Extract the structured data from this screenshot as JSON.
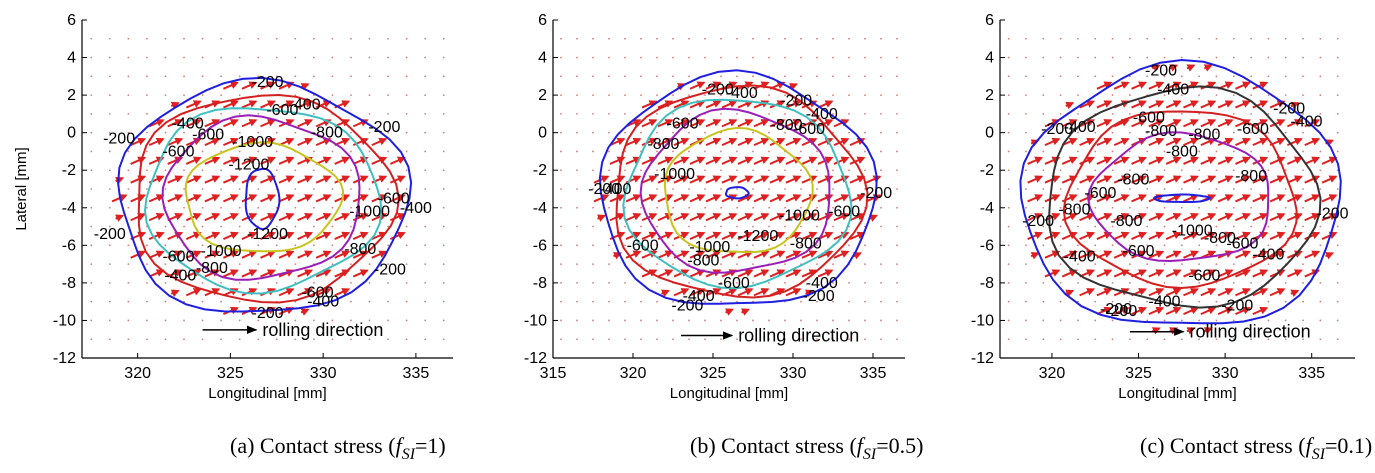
{
  "chart_data": [
    {
      "type": "contour",
      "xlabel": "Longitudinal [mm]",
      "ylabel": "Lateral [mm]",
      "xlim": [
        317,
        337
      ],
      "ylim": [
        -12,
        6
      ],
      "xticks": [
        320,
        325,
        330,
        335
      ],
      "yticks": [
        6,
        4,
        2,
        0,
        -2,
        -4,
        -6,
        -8,
        -10,
        -12
      ],
      "center": [
        326.7,
        -3.5
      ],
      "annotation": "rolling direction",
      "arrow": {
        "x0": 323.5,
        "x1": 326.4,
        "y": -10.5
      },
      "caption": {
        "prefix": "(a) Contact stress (",
        "var": "f",
        "sub": "SI",
        "suffix": "=1)"
      },
      "levels": [
        {
          "value": -200,
          "color": "#1f1fe0",
          "rx": 7.8,
          "ry": 6.2
        },
        {
          "value": -400,
          "color": "#d42020",
          "rx": 7.0,
          "ry": 5.5
        },
        {
          "value": -600,
          "color": "#3fbfbf",
          "rx": 6.3,
          "ry": 4.9
        },
        {
          "value": -800,
          "color": "#9a1fb8",
          "rx": 5.3,
          "ry": 4.3
        },
        {
          "value": -1000,
          "color": "#c8c41f",
          "rx": 4.2,
          "ry": 2.9
        },
        {
          "value": -1200,
          "color": "#1f1fe0",
          "rx": 0.9,
          "ry": 1.6
        }
      ],
      "labels": [
        {
          "text": "-200",
          "x": 327.0,
          "y": 2.7
        },
        {
          "text": "-400",
          "x": 329.0,
          "y": 1.5
        },
        {
          "text": "-600",
          "x": 327.8,
          "y": 1.2
        },
        {
          "text": "-800",
          "x": 330.2,
          "y": 0.0
        },
        {
          "text": "-1000",
          "x": 326.2,
          "y": -0.5
        },
        {
          "text": "-1200",
          "x": 326.0,
          "y": -1.7
        },
        {
          "text": "-200",
          "x": 319.0,
          "y": -0.3
        },
        {
          "text": "-400",
          "x": 322.7,
          "y": 0.5
        },
        {
          "text": "-600",
          "x": 322.2,
          "y": -1.0
        },
        {
          "text": "-600",
          "x": 323.8,
          "y": -0.1
        },
        {
          "text": "-200",
          "x": 333.3,
          "y": 0.3
        },
        {
          "text": "-1000",
          "x": 332.5,
          "y": -4.2
        },
        {
          "text": "-600",
          "x": 333.8,
          "y": -3.5
        },
        {
          "text": "-400",
          "x": 335.0,
          "y": -4.0
        },
        {
          "text": "-1200",
          "x": 327.0,
          "y": -5.4
        },
        {
          "text": "-1000",
          "x": 324.5,
          "y": -6.3
        },
        {
          "text": "-800",
          "x": 332.0,
          "y": -6.2
        },
        {
          "text": "-600",
          "x": 322.2,
          "y": -6.6
        },
        {
          "text": "-800",
          "x": 324.0,
          "y": -7.2
        },
        {
          "text": "-400",
          "x": 322.3,
          "y": -7.6
        },
        {
          "text": "-200",
          "x": 318.5,
          "y": -5.4
        },
        {
          "text": "-200",
          "x": 333.6,
          "y": -7.3
        },
        {
          "text": "-600",
          "x": 329.7,
          "y": -8.5
        },
        {
          "text": "-400",
          "x": 330.0,
          "y": -9.0
        },
        {
          "text": "-200",
          "x": 327.0,
          "y": -9.6
        }
      ]
    },
    {
      "type": "contour",
      "xlabel": "Longitudinal [mm]",
      "ylabel": "",
      "xlim": [
        315,
        337
      ],
      "ylim": [
        -12,
        6
      ],
      "xticks": [
        315,
        320,
        325,
        330,
        335
      ],
      "yticks": [
        6,
        4,
        2,
        0,
        -2,
        -4,
        -6,
        -8,
        -10,
        -12
      ],
      "center": [
        326.5,
        -3.2
      ],
      "annotation": "rolling direction",
      "arrow": {
        "x0": 323.0,
        "x1": 326.2,
        "y": -10.8
      },
      "caption": {
        "prefix": "(b) Contact stress (",
        "var": "f",
        "sub": "SI",
        "suffix": "=0.5)"
      },
      "levels": [
        {
          "value": -200,
          "color": "#1f1fe0",
          "rx": 8.6,
          "ry": 6.2
        },
        {
          "value": -400,
          "color": "#d42020",
          "rx": 7.8,
          "ry": 5.6
        },
        {
          "value": -600,
          "color": "#3fbfbf",
          "rx": 7.0,
          "ry": 5.0
        },
        {
          "value": -800,
          "color": "#9a1fb8",
          "rx": 5.9,
          "ry": 4.3
        },
        {
          "value": -1000,
          "color": "#c8c41f",
          "rx": 4.6,
          "ry": 3.3
        },
        {
          "value": -1200,
          "color": "#1f1fe0",
          "rx": 0.7,
          "ry": 0.3
        }
      ],
      "labels": [
        {
          "text": "-200",
          "x": 325.3,
          "y": 2.3
        },
        {
          "text": "-400",
          "x": 326.8,
          "y": 2.1
        },
        {
          "text": "-200",
          "x": 330.2,
          "y": 1.7
        },
        {
          "text": "-400",
          "x": 331.8,
          "y": 1.0
        },
        {
          "text": "-600",
          "x": 331.0,
          "y": 0.2
        },
        {
          "text": "-800",
          "x": 329.6,
          "y": 0.4
        },
        {
          "text": "-600",
          "x": 323.1,
          "y": 0.5
        },
        {
          "text": "-800",
          "x": 321.9,
          "y": -0.6
        },
        {
          "text": "-1000",
          "x": 322.6,
          "y": -2.2
        },
        {
          "text": "-200",
          "x": 318.2,
          "y": -3.0
        },
        {
          "text": "-400",
          "x": 318.9,
          "y": -3.0
        },
        {
          "text": "-1000",
          "x": 330.4,
          "y": -4.4
        },
        {
          "text": "-600",
          "x": 333.2,
          "y": -4.2
        },
        {
          "text": "-200",
          "x": 335.2,
          "y": -3.2
        },
        {
          "text": "-1200",
          "x": 327.8,
          "y": -5.5
        },
        {
          "text": "-1000",
          "x": 324.8,
          "y": -6.1
        },
        {
          "text": "-800",
          "x": 324.4,
          "y": -6.8
        },
        {
          "text": "-600",
          "x": 320.6,
          "y": -6.0
        },
        {
          "text": "-800",
          "x": 330.8,
          "y": -5.9
        },
        {
          "text": "-600",
          "x": 326.3,
          "y": -8.0
        },
        {
          "text": "-400",
          "x": 331.8,
          "y": -8.0
        },
        {
          "text": "-200",
          "x": 331.6,
          "y": -8.7
        },
        {
          "text": "-400",
          "x": 324.1,
          "y": -8.7
        },
        {
          "text": "-200",
          "x": 323.4,
          "y": -9.2
        }
      ]
    },
    {
      "type": "contour",
      "xlabel": "Longitudinal [mm]",
      "ylabel": "",
      "xlim": [
        317,
        337.5
      ],
      "ylim": [
        -12,
        6
      ],
      "xticks": [
        320,
        325,
        330,
        335
      ],
      "yticks": [
        6,
        4,
        2,
        0,
        -2,
        -4,
        -6,
        -8,
        -10,
        -12
      ],
      "center": [
        327.5,
        -3.5
      ],
      "annotation": "rolling direction",
      "arrow": {
        "x0": 324.5,
        "x1": 327.6,
        "y": -10.6
      },
      "caption": {
        "prefix": "(c) Contact stress (",
        "var": "f",
        "sub": "SI",
        "suffix": "=0.1)"
      },
      "levels": [
        {
          "value": -200,
          "color": "#1f1fe0",
          "rx": 9.2,
          "ry": 7.0
        },
        {
          "value": -400,
          "color": "#333333",
          "rx": 7.8,
          "ry": 5.8
        },
        {
          "value": -600,
          "color": "#d42020",
          "rx": 6.6,
          "ry": 4.7
        },
        {
          "value": -800,
          "color": "#9a1fb8",
          "rx": 5.2,
          "ry": 3.4
        },
        {
          "value": -1000,
          "color": "#1f1fe0",
          "rx": 1.6,
          "ry": 0.2
        }
      ],
      "labels": [
        {
          "text": "-200",
          "x": 326.3,
          "y": 3.3
        },
        {
          "text": "-400",
          "x": 327.0,
          "y": 2.3
        },
        {
          "text": "-200",
          "x": 333.7,
          "y": 1.3
        },
        {
          "text": "-400",
          "x": 334.7,
          "y": 0.6
        },
        {
          "text": "-600",
          "x": 331.6,
          "y": 0.2
        },
        {
          "text": "-600",
          "x": 325.6,
          "y": 0.8
        },
        {
          "text": "-800",
          "x": 326.3,
          "y": 0.1
        },
        {
          "text": "-800",
          "x": 328.8,
          "y": -0.1
        },
        {
          "text": "-800",
          "x": 327.5,
          "y": -1.0
        },
        {
          "text": "-200",
          "x": 320.3,
          "y": 0.2
        },
        {
          "text": "-400",
          "x": 321.6,
          "y": 0.3
        },
        {
          "text": "-800",
          "x": 331.5,
          "y": -2.3
        },
        {
          "text": "-800",
          "x": 324.7,
          "y": -2.5
        },
        {
          "text": "-600",
          "x": 322.8,
          "y": -3.2
        },
        {
          "text": "-800",
          "x": 321.3,
          "y": -4.1
        },
        {
          "text": "-200",
          "x": 336.2,
          "y": -4.3
        },
        {
          "text": "-200",
          "x": 319.2,
          "y": -4.7
        },
        {
          "text": "-800",
          "x": 324.3,
          "y": -4.7
        },
        {
          "text": "-1000",
          "x": 328.1,
          "y": -5.2
        },
        {
          "text": "-800",
          "x": 329.7,
          "y": -5.6
        },
        {
          "text": "-600",
          "x": 331.0,
          "y": -5.9
        },
        {
          "text": "-600",
          "x": 325.0,
          "y": -6.3
        },
        {
          "text": "-400",
          "x": 332.5,
          "y": -6.5
        },
        {
          "text": "-400",
          "x": 321.6,
          "y": -6.6
        },
        {
          "text": "-600",
          "x": 328.8,
          "y": -7.6
        },
        {
          "text": "-400",
          "x": 326.5,
          "y": -9.0
        },
        {
          "text": "-200",
          "x": 330.7,
          "y": -9.2
        },
        {
          "text": "-200",
          "x": 324.0,
          "y": -9.5
        },
        {
          "text": "-200",
          "x": 323.7,
          "y": -9.4
        }
      ]
    }
  ],
  "colors": {
    "arrow_field": "#e02020",
    "grid_dots": "#d08080",
    "axis": "#000000"
  }
}
